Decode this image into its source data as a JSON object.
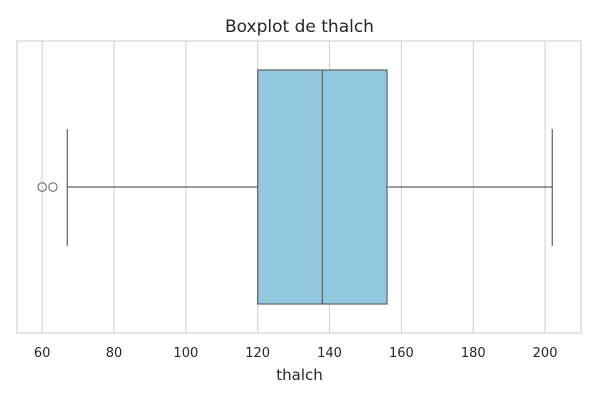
{
  "chart_data": {
    "type": "boxplot",
    "title": "Boxplot de thalch",
    "xlabel": "thalch",
    "ylabel": "",
    "xlim": [
      53,
      210
    ],
    "x_ticks": [
      60,
      80,
      100,
      120,
      140,
      160,
      180,
      200
    ],
    "x_tick_labels": [
      "60",
      "80",
      "100",
      "120",
      "140",
      "160",
      "180",
      "200"
    ],
    "grid": true,
    "box": {
      "whisker_low": 67,
      "q1": 120,
      "median": 138,
      "q3": 156,
      "whisker_high": 202,
      "outliers": [
        60,
        63
      ]
    }
  },
  "colors": {
    "box_fill": "#92c8df",
    "box_line": "#606060",
    "grid": "#cfcfcf",
    "frame": "#cccccc",
    "text": "#262626"
  }
}
